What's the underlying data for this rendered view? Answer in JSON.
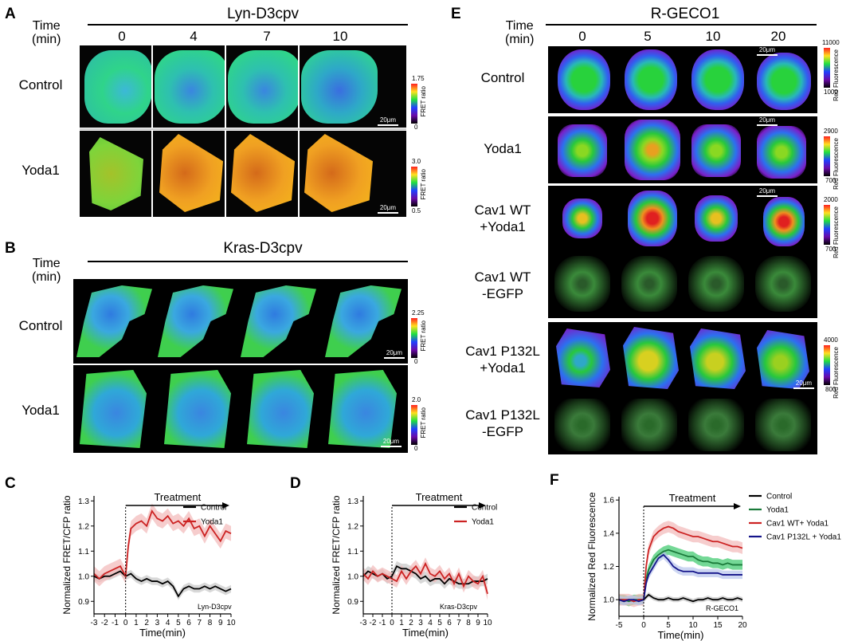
{
  "panels": {
    "A": {
      "letter": "A",
      "title": "Lyn-D3cpv",
      "time_label": "Time\n(min)",
      "times": [
        "0",
        "4",
        "7",
        "10"
      ],
      "rows": [
        {
          "label": "Control",
          "cbar_max": "1.75",
          "cbar_min": "0",
          "cbar_label": "FRET ratio",
          "scale": "20μm"
        },
        {
          "label": "Yoda1",
          "cbar_max": "3.0",
          "cbar_min": "0.5",
          "cbar_label": "FRET ratio",
          "scale": "20μm"
        }
      ]
    },
    "B": {
      "letter": "B",
      "title": "Kras-D3cpv",
      "time_label": "Time\n(min)",
      "rows": [
        {
          "label": "Control",
          "cbar_max": "2.25",
          "cbar_min": "0",
          "cbar_label": "FRET ratio",
          "scale": "20μm"
        },
        {
          "label": "Yoda1",
          "cbar_max": "2.0",
          "cbar_min": "0",
          "cbar_label": "FRET ratio",
          "scale": "20μm"
        }
      ]
    },
    "E": {
      "letter": "E",
      "title": "R-GECO1",
      "time_label": "Time\n(min)",
      "times": [
        "0",
        "5",
        "10",
        "20"
      ],
      "rows": [
        {
          "label": "Control",
          "cbar_max": "11000",
          "cbar_min": "1000",
          "cbar_label": "Red Fluorescence",
          "scale": "20μm"
        },
        {
          "label": "Yoda1",
          "cbar_max": "2900",
          "cbar_min": "700",
          "cbar_label": "Red Fluorescence",
          "scale": "20μm"
        },
        {
          "label": "Cav1 WT\n+Yoda1",
          "cbar_max": "2000",
          "cbar_min": "700",
          "cbar_label": "Red Fluorescence",
          "scale": "20μm"
        },
        {
          "label": "Cav1 WT\n-EGFP"
        },
        {
          "label": "Cav1 P132L\n+Yoda1",
          "cbar_max": "4000",
          "cbar_min": "800",
          "cbar_label": "Red Fluorescence",
          "scale": "20μm"
        },
        {
          "label": "Cav1 P132L\n-EGFP"
        }
      ]
    },
    "C": {
      "letter": "C"
    },
    "D": {
      "letter": "D"
    },
    "F": {
      "letter": "F"
    }
  },
  "chart_data": [
    {
      "id": "C",
      "type": "line",
      "ylabel": "Normalized FRET/CFP ratio",
      "xlabel": "Time(min)",
      "xlim": [
        -3,
        10
      ],
      "ylim": [
        0.85,
        1.32
      ],
      "xticks": [
        "-3",
        "-2",
        "-1",
        "0",
        "1",
        "2",
        "3",
        "4",
        "5",
        "6",
        "7",
        "8",
        "9",
        "10"
      ],
      "yticks": [
        "0.9",
        "1.0",
        "1.1",
        "1.2",
        "1.3"
      ],
      "annotation": "Treatment",
      "tag": "Lyn-D3cpv",
      "series": [
        {
          "name": "Control",
          "color": "#000000",
          "band": "#c8c8c8",
          "x": [
            -3,
            -2.5,
            -2,
            -1.5,
            -1,
            -0.5,
            0,
            0.5,
            1,
            1.5,
            2,
            2.5,
            3,
            3.5,
            4,
            4.5,
            5,
            5.5,
            6,
            6.5,
            7,
            7.5,
            8,
            8.5,
            9,
            9.5,
            10
          ],
          "y": [
            1.0,
            0.99,
            1.0,
            1.0,
            1.01,
            1.02,
            1.0,
            1.01,
            0.99,
            0.98,
            0.99,
            0.98,
            0.98,
            0.97,
            0.98,
            0.96,
            0.92,
            0.95,
            0.96,
            0.95,
            0.95,
            0.96,
            0.95,
            0.96,
            0.95,
            0.94,
            0.95
          ],
          "err": 0.015
        },
        {
          "name": "Yoda1",
          "color": "#cc2222",
          "band": "#f2b8b8",
          "x": [
            -3,
            -2.5,
            -2,
            -1.5,
            -1,
            -0.5,
            0,
            0.25,
            0.5,
            1,
            1.5,
            2,
            2.5,
            3,
            3.5,
            4,
            4.5,
            5,
            5.5,
            6,
            6.5,
            7,
            7.5,
            8,
            8.5,
            9,
            9.5,
            10
          ],
          "y": [
            1.01,
            0.99,
            1.01,
            1.02,
            1.03,
            1.04,
            1.0,
            1.12,
            1.19,
            1.21,
            1.22,
            1.2,
            1.26,
            1.23,
            1.22,
            1.24,
            1.21,
            1.22,
            1.2,
            1.23,
            1.19,
            1.2,
            1.16,
            1.2,
            1.17,
            1.14,
            1.18,
            1.17
          ],
          "err": 0.03
        }
      ]
    },
    {
      "id": "D",
      "type": "line",
      "ylabel": "Normalized FRET/CFP ratio",
      "xlabel": "Time(min)",
      "xlim": [
        -3,
        10
      ],
      "ylim": [
        0.85,
        1.32
      ],
      "xticks": [
        "-3",
        "-2",
        "-1",
        "0",
        "1",
        "2",
        "3",
        "4",
        "5",
        "6",
        "7",
        "8",
        "9",
        "10"
      ],
      "yticks": [
        "0.9",
        "1.0",
        "1.1",
        "1.2",
        "1.3"
      ],
      "annotation": "Treatment",
      "tag": "Kras-D3cpv",
      "series": [
        {
          "name": "Control",
          "color": "#000000",
          "band": "#c8c8c8",
          "x": [
            -3,
            -2.5,
            -2,
            -1.5,
            -1,
            -0.5,
            0,
            0.5,
            1,
            1.5,
            2,
            2.5,
            3,
            3.5,
            4,
            4.5,
            5,
            5.5,
            6,
            6.5,
            7,
            7.5,
            8,
            8.5,
            9,
            9.5,
            10
          ],
          "y": [
            1.0,
            1.02,
            1.01,
            1.0,
            1.01,
            0.99,
            1.0,
            1.04,
            1.03,
            1.03,
            1.02,
            1.01,
            0.99,
            1.0,
            0.98,
            0.99,
            0.99,
            0.97,
            0.99,
            0.98,
            0.97,
            0.97,
            0.97,
            0.98,
            0.98,
            0.98,
            0.99
          ],
          "err": 0.02
        },
        {
          "name": "Yoda1",
          "color": "#cc2222",
          "band": "#f2b8b8",
          "x": [
            -3,
            -2.5,
            -2,
            -1.5,
            -1,
            -0.5,
            0,
            0.5,
            1,
            1.5,
            2,
            2.5,
            3,
            3.5,
            4,
            4.5,
            5,
            5.5,
            6,
            6.5,
            7,
            7.5,
            8,
            8.5,
            9,
            9.5,
            10
          ],
          "y": [
            1.01,
            0.99,
            1.02,
            1.0,
            1.01,
            1.0,
            0.99,
            0.98,
            1.02,
            0.99,
            1.02,
            1.04,
            1.01,
            1.05,
            1.01,
            1.0,
            1.02,
            0.99,
            1.01,
            0.97,
            1.01,
            0.96,
            1.0,
            0.98,
            0.97,
            1.0,
            0.93
          ],
          "err": 0.025
        }
      ]
    },
    {
      "id": "F",
      "type": "line",
      "ylabel": "Normalized Red  Fluorescence",
      "xlabel": "Time(min)",
      "xlim": [
        -5,
        20
      ],
      "ylim": [
        0.9,
        1.62
      ],
      "xticks": [
        "-5",
        "0",
        "5",
        "10",
        "15",
        "20"
      ],
      "yticks": [
        "1.0",
        "1.2",
        "1.4",
        "1.6"
      ],
      "annotation": "Treatment",
      "tag": "R-GECO1",
      "series": [
        {
          "name": "Control",
          "color": "#000000",
          "band": "#c8c8c8",
          "x": [
            -5,
            -4,
            -3,
            -2,
            -1,
            0,
            1,
            2,
            3,
            4,
            5,
            6,
            7,
            8,
            9,
            10,
            11,
            12,
            13,
            14,
            15,
            16,
            17,
            18,
            19,
            20
          ],
          "y": [
            1.0,
            0.99,
            1.0,
            0.99,
            1.0,
            1.0,
            1.03,
            1.01,
            1.0,
            1.0,
            1.01,
            1.0,
            1.0,
            1.01,
            1.0,
            0.99,
            1.0,
            1.0,
            1.01,
            1.0,
            1.0,
            1.01,
            1.0,
            1.0,
            1.01,
            1.0
          ],
          "err": 0.015
        },
        {
          "name": "Yoda1",
          "color": "#1a7a3a",
          "band": "#39c86a",
          "x": [
            -5,
            -4,
            -3,
            -2,
            -1,
            0,
            0.5,
            1,
            2,
            3,
            4,
            5,
            6,
            7,
            8,
            9,
            10,
            11,
            12,
            13,
            14,
            15,
            16,
            17,
            18,
            19,
            20
          ],
          "y": [
            1.0,
            1.0,
            0.99,
            1.0,
            1.0,
            1.0,
            1.12,
            1.18,
            1.24,
            1.27,
            1.29,
            1.3,
            1.29,
            1.28,
            1.27,
            1.26,
            1.26,
            1.24,
            1.23,
            1.23,
            1.22,
            1.22,
            1.21,
            1.22,
            1.21,
            1.21,
            1.21
          ],
          "err": 0.03
        },
        {
          "name": "Cav1 WT+ Yoda1",
          "color": "#cc2222",
          "band": "#f2b8b8",
          "x": [
            -5,
            -4,
            -3,
            -2,
            -1,
            0,
            0.5,
            1,
            2,
            3,
            4,
            5,
            6,
            7,
            8,
            9,
            10,
            11,
            12,
            13,
            14,
            15,
            16,
            17,
            18,
            19,
            20
          ],
          "y": [
            1.0,
            1.0,
            1.0,
            0.99,
            1.0,
            1.0,
            1.2,
            1.3,
            1.38,
            1.41,
            1.43,
            1.44,
            1.43,
            1.41,
            1.4,
            1.39,
            1.38,
            1.38,
            1.37,
            1.36,
            1.35,
            1.35,
            1.34,
            1.33,
            1.32,
            1.32,
            1.31
          ],
          "err": 0.035
        },
        {
          "name": "Cav1 P132L + Yoda1",
          "color": "#14148a",
          "band": "#b8c4ec",
          "x": [
            -5,
            -4,
            -3,
            -2,
            -1,
            0,
            0.5,
            1,
            2,
            3,
            4,
            5,
            6,
            7,
            8,
            9,
            10,
            11,
            12,
            13,
            14,
            15,
            16,
            17,
            18,
            19,
            20
          ],
          "y": [
            1.0,
            0.99,
            1.0,
            1.0,
            0.99,
            1.0,
            1.1,
            1.15,
            1.2,
            1.25,
            1.27,
            1.24,
            1.2,
            1.18,
            1.17,
            1.17,
            1.17,
            1.16,
            1.16,
            1.16,
            1.16,
            1.16,
            1.15,
            1.15,
            1.15,
            1.15,
            1.15
          ],
          "err": 0.025
        }
      ]
    }
  ]
}
